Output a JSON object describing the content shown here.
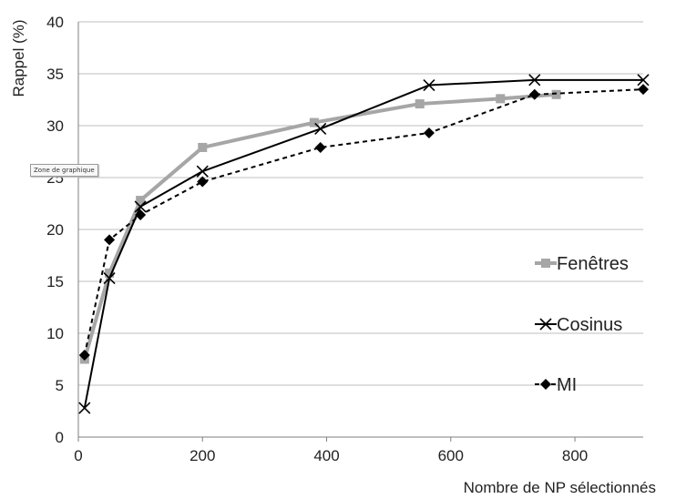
{
  "tooltip": "Zone de graphique",
  "chart_data": {
    "type": "line",
    "title": "",
    "xlabel": "Nombre de NP sélectionnés",
    "ylabel": "Rappel (%)",
    "xlim": [
      0,
      910
    ],
    "ylim": [
      0,
      40
    ],
    "xticks": [
      0,
      200,
      400,
      600,
      800
    ],
    "yticks": [
      0,
      5,
      10,
      15,
      20,
      25,
      30,
      35,
      40
    ],
    "grid": "horizontal",
    "legend": "right",
    "series": [
      {
        "name": "Fenêtres",
        "color": "#a6a6a6",
        "line": "solid-thick",
        "marker": "square",
        "x": [
          10,
          50,
          100,
          200,
          380,
          550,
          680,
          770
        ],
        "y": [
          7.5,
          15.8,
          22.8,
          27.9,
          30.3,
          32.1,
          32.6,
          33.0
        ]
      },
      {
        "name": "Cosinus",
        "color": "#000000",
        "line": "solid",
        "marker": "x",
        "x": [
          10,
          50,
          100,
          200,
          390,
          565,
          735,
          910
        ],
        "y": [
          2.8,
          15.3,
          22.2,
          25.6,
          29.7,
          33.9,
          34.4,
          34.4
        ]
      },
      {
        "name": "MI",
        "color": "#000000",
        "line": "dashed",
        "marker": "diamond",
        "x": [
          10,
          50,
          100,
          200,
          390,
          565,
          735,
          910
        ],
        "y": [
          7.9,
          19.0,
          21.4,
          24.6,
          27.9,
          29.3,
          33.0,
          33.5
        ]
      }
    ]
  }
}
